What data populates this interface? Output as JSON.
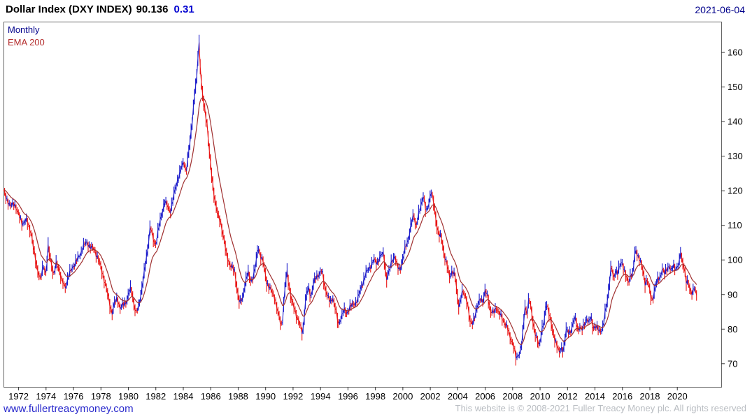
{
  "header": {
    "title": "Dollar Index (DXY INDEX)",
    "last_price": "90.136",
    "change": "0.31",
    "date": "2021-06-04"
  },
  "legend": {
    "series_label": "Monthly",
    "ema_label": "EMA 200"
  },
  "footer": {
    "link": "www.fullertreacymoney.com",
    "copyright": "This website is © 2008-2021 Fuller Treacy Money plc. All rights reserved"
  },
  "colors": {
    "up": "#1d1dcb",
    "down": "#e81414",
    "ema": "#a03030",
    "navy": "#00008b",
    "ema_label": "#b42e2e",
    "change": "#0000d0",
    "link": "#2929cc",
    "copyright": "#b9bdc2",
    "axis_text": "#000000",
    "tick": "#333333",
    "border": "#666666"
  },
  "chart_data": {
    "type": "line",
    "title": "Dollar Index (DXY INDEX)",
    "timeframe": "Monthly",
    "overlay": "EMA 200",
    "last_price": 90.136,
    "change": 0.31,
    "as_of_date": "2021-06-04",
    "grid": false,
    "legend_position": "top-left",
    "y_axis_side": "right",
    "xlim": [
      1970.9,
      2023.2
    ],
    "ylim": [
      63.3,
      168.9
    ],
    "x_ticks": [
      1972,
      1974,
      1976,
      1978,
      1980,
      1982,
      1984,
      1986,
      1988,
      1990,
      1992,
      1994,
      1996,
      1998,
      2000,
      2002,
      2004,
      2006,
      2008,
      2010,
      2012,
      2014,
      2016,
      2018,
      2020
    ],
    "y_ticks": [
      70,
      80,
      90,
      100,
      110,
      120,
      130,
      140,
      150,
      160
    ],
    "render_alpha": 0.14,
    "series": [
      {
        "name": "DXY Monthly",
        "style": "ohlc-bars",
        "anchors": [
          [
            1970.9,
            120
          ],
          [
            1971.1,
            118
          ],
          [
            1971.4,
            115.5
          ],
          [
            1971.7,
            116.5
          ],
          [
            1972.0,
            113
          ],
          [
            1972.3,
            110.5
          ],
          [
            1972.6,
            111.5
          ],
          [
            1972.9,
            108
          ],
          [
            1973.1,
            103
          ],
          [
            1973.4,
            97
          ],
          [
            1973.6,
            94
          ],
          [
            1973.8,
            98.5
          ],
          [
            1974.0,
            96
          ],
          [
            1974.15,
            103.5
          ],
          [
            1974.35,
            100
          ],
          [
            1974.55,
            95.5
          ],
          [
            1974.75,
            99
          ],
          [
            1974.95,
            97.5
          ],
          [
            1975.15,
            94
          ],
          [
            1975.4,
            92
          ],
          [
            1975.65,
            95.5
          ],
          [
            1975.9,
            97.5
          ],
          [
            1976.15,
            99.5
          ],
          [
            1976.45,
            101
          ],
          [
            1976.7,
            104
          ],
          [
            1976.95,
            105
          ],
          [
            1977.2,
            104
          ],
          [
            1977.5,
            103
          ],
          [
            1977.8,
            100.5
          ],
          [
            1978.05,
            97
          ],
          [
            1978.3,
            93.5
          ],
          [
            1978.55,
            89
          ],
          [
            1978.8,
            84.5
          ],
          [
            1979.0,
            87.5
          ],
          [
            1979.2,
            89
          ],
          [
            1979.4,
            86
          ],
          [
            1979.6,
            87
          ],
          [
            1979.85,
            88
          ],
          [
            1980.05,
            90.5
          ],
          [
            1980.2,
            92
          ],
          [
            1980.4,
            87.5
          ],
          [
            1980.55,
            84.5
          ],
          [
            1980.75,
            86.5
          ],
          [
            1980.95,
            91
          ],
          [
            1981.15,
            96
          ],
          [
            1981.4,
            103
          ],
          [
            1981.6,
            110
          ],
          [
            1981.8,
            106
          ],
          [
            1982.0,
            104.5
          ],
          [
            1982.2,
            109
          ],
          [
            1982.45,
            113.5
          ],
          [
            1982.65,
            117
          ],
          [
            1982.85,
            115.5
          ],
          [
            1983.05,
            114
          ],
          [
            1983.25,
            117.5
          ],
          [
            1983.45,
            121
          ],
          [
            1983.65,
            124
          ],
          [
            1983.85,
            126.5
          ],
          [
            1984.05,
            128.5
          ],
          [
            1984.2,
            125.5
          ],
          [
            1984.4,
            131
          ],
          [
            1984.6,
            138
          ],
          [
            1984.8,
            147
          ],
          [
            1985.0,
            153
          ],
          [
            1985.13,
            164
          ],
          [
            1985.3,
            152
          ],
          [
            1985.45,
            146
          ],
          [
            1985.6,
            142.5
          ],
          [
            1985.75,
            139
          ],
          [
            1985.95,
            129
          ],
          [
            1986.15,
            121.5
          ],
          [
            1986.35,
            116.5
          ],
          [
            1986.55,
            112.5
          ],
          [
            1986.75,
            110.5
          ],
          [
            1986.95,
            106.5
          ],
          [
            1987.15,
            101.5
          ],
          [
            1987.35,
            99
          ],
          [
            1987.55,
            98
          ],
          [
            1987.75,
            96.5
          ],
          [
            1987.95,
            91
          ],
          [
            1988.1,
            87.5
          ],
          [
            1988.3,
            88.5
          ],
          [
            1988.5,
            93
          ],
          [
            1988.7,
            96.5
          ],
          [
            1988.9,
            94
          ],
          [
            1989.1,
            95
          ],
          [
            1989.3,
            99
          ],
          [
            1989.45,
            104
          ],
          [
            1989.65,
            101
          ],
          [
            1989.85,
            99
          ],
          [
            1990.05,
            94
          ],
          [
            1990.25,
            92
          ],
          [
            1990.45,
            91
          ],
          [
            1990.65,
            89.5
          ],
          [
            1990.85,
            85.5
          ],
          [
            1991.05,
            82.5
          ],
          [
            1991.2,
            81
          ],
          [
            1991.4,
            91
          ],
          [
            1991.55,
            97
          ],
          [
            1991.7,
            93
          ],
          [
            1991.9,
            88
          ],
          [
            1992.1,
            86
          ],
          [
            1992.3,
            83.5
          ],
          [
            1992.55,
            80.5
          ],
          [
            1992.7,
            78.5
          ],
          [
            1992.9,
            88
          ],
          [
            1993.1,
            92
          ],
          [
            1993.3,
            89.5
          ],
          [
            1993.5,
            93.5
          ],
          [
            1993.7,
            95
          ],
          [
            1993.9,
            96
          ],
          [
            1994.1,
            97
          ],
          [
            1994.3,
            92.5
          ],
          [
            1994.5,
            90
          ],
          [
            1994.7,
            87.5
          ],
          [
            1994.9,
            89
          ],
          [
            1995.1,
            86
          ],
          [
            1995.3,
            81
          ],
          [
            1995.5,
            83.5
          ],
          [
            1995.7,
            85.5
          ],
          [
            1995.9,
            84.5
          ],
          [
            1996.15,
            86.5
          ],
          [
            1996.4,
            87
          ],
          [
            1996.7,
            88.5
          ],
          [
            1997.0,
            92.5
          ],
          [
            1997.3,
            96
          ],
          [
            1997.6,
            98
          ],
          [
            1997.9,
            100
          ],
          [
            1998.1,
            99
          ],
          [
            1998.35,
            101
          ],
          [
            1998.6,
            102
          ],
          [
            1998.8,
            94.5
          ],
          [
            1999.0,
            96.5
          ],
          [
            1999.2,
            100
          ],
          [
            1999.4,
            101
          ],
          [
            1999.6,
            98
          ],
          [
            1999.8,
            97.5
          ],
          [
            2000.0,
            100
          ],
          [
            2000.2,
            104
          ],
          [
            2000.4,
            106
          ],
          [
            2000.6,
            110
          ],
          [
            2000.8,
            113.5
          ],
          [
            2000.95,
            109.5
          ],
          [
            2001.1,
            112
          ],
          [
            2001.3,
            115.5
          ],
          [
            2001.5,
            119
          ],
          [
            2001.7,
            113.5
          ],
          [
            2001.9,
            116.5
          ],
          [
            2002.05,
            120
          ],
          [
            2002.2,
            117.5
          ],
          [
            2002.4,
            112
          ],
          [
            2002.6,
            107.5
          ],
          [
            2002.8,
            106.5
          ],
          [
            2003.0,
            102
          ],
          [
            2003.2,
            99
          ],
          [
            2003.4,
            95
          ],
          [
            2003.6,
            97
          ],
          [
            2003.8,
            95.5
          ],
          [
            2004.0,
            88.5
          ],
          [
            2004.1,
            86.5
          ],
          [
            2004.3,
            90.5
          ],
          [
            2004.5,
            90
          ],
          [
            2004.7,
            88
          ],
          [
            2004.9,
            82
          ],
          [
            2005.05,
            81.5
          ],
          [
            2005.25,
            84
          ],
          [
            2005.45,
            86.5
          ],
          [
            2005.65,
            89
          ],
          [
            2005.85,
            88
          ],
          [
            2006.0,
            91
          ],
          [
            2006.2,
            89.5
          ],
          [
            2006.4,
            85
          ],
          [
            2006.6,
            84.5
          ],
          [
            2006.8,
            86.5
          ],
          [
            2007.0,
            84.5
          ],
          [
            2007.2,
            83.5
          ],
          [
            2007.4,
            82
          ],
          [
            2007.6,
            80.5
          ],
          [
            2007.8,
            78
          ],
          [
            2008.0,
            76
          ],
          [
            2008.15,
            73.5
          ],
          [
            2008.25,
            71.5
          ],
          [
            2008.4,
            72.5
          ],
          [
            2008.55,
            73.5
          ],
          [
            2008.7,
            76.5
          ],
          [
            2008.9,
            86.5
          ],
          [
            2009.05,
            84.5
          ],
          [
            2009.2,
            89
          ],
          [
            2009.4,
            84.5
          ],
          [
            2009.6,
            79.5
          ],
          [
            2009.8,
            76.5
          ],
          [
            2009.95,
            75
          ],
          [
            2010.1,
            79.5
          ],
          [
            2010.3,
            82
          ],
          [
            2010.45,
            87.5
          ],
          [
            2010.6,
            86
          ],
          [
            2010.75,
            83
          ],
          [
            2010.9,
            79.5
          ],
          [
            2011.05,
            77.5
          ],
          [
            2011.2,
            76
          ],
          [
            2011.4,
            73
          ],
          [
            2011.55,
            74.5
          ],
          [
            2011.7,
            74
          ],
          [
            2011.9,
            79.5
          ],
          [
            2012.1,
            79
          ],
          [
            2012.3,
            80
          ],
          [
            2012.45,
            82.5
          ],
          [
            2012.6,
            83
          ],
          [
            2012.75,
            80
          ],
          [
            2012.9,
            80.5
          ],
          [
            2013.05,
            79.5
          ],
          [
            2013.2,
            81.5
          ],
          [
            2013.4,
            83
          ],
          [
            2013.55,
            81.5
          ],
          [
            2013.7,
            84
          ],
          [
            2013.85,
            80.5
          ],
          [
            2014.05,
            80.5
          ],
          [
            2014.25,
            80
          ],
          [
            2014.45,
            79.5
          ],
          [
            2014.6,
            80.5
          ],
          [
            2014.75,
            85
          ],
          [
            2014.9,
            88.5
          ],
          [
            2015.05,
            93
          ],
          [
            2015.2,
            98.5
          ],
          [
            2015.35,
            94.5
          ],
          [
            2015.5,
            97
          ],
          [
            2015.65,
            96
          ],
          [
            2015.8,
            98
          ],
          [
            2015.95,
            100
          ],
          [
            2016.1,
            97.5
          ],
          [
            2016.3,
            94.5
          ],
          [
            2016.45,
            93.5
          ],
          [
            2016.6,
            96
          ],
          [
            2016.75,
            95.5
          ],
          [
            2016.9,
            101.5
          ],
          [
            2017.0,
            103
          ],
          [
            2017.15,
            101
          ],
          [
            2017.3,
            99.5
          ],
          [
            2017.5,
            97
          ],
          [
            2017.65,
            93.5
          ],
          [
            2017.8,
            94
          ],
          [
            2017.95,
            92
          ],
          [
            2018.1,
            89
          ],
          [
            2018.2,
            88.5
          ],
          [
            2018.4,
            92
          ],
          [
            2018.6,
            95
          ],
          [
            2018.75,
            95
          ],
          [
            2018.9,
            97
          ],
          [
            2019.05,
            96
          ],
          [
            2019.2,
            97.5
          ],
          [
            2019.4,
            98
          ],
          [
            2019.55,
            96.5
          ],
          [
            2019.7,
            99
          ],
          [
            2019.85,
            97.5
          ],
          [
            2020.0,
            97.5
          ],
          [
            2020.15,
            99.5
          ],
          [
            2020.22,
            103
          ],
          [
            2020.35,
            100
          ],
          [
            2020.5,
            97.5
          ],
          [
            2020.65,
            93.5
          ],
          [
            2020.8,
            94
          ],
          [
            2020.95,
            91
          ],
          [
            2021.1,
            89.8
          ],
          [
            2021.25,
            92.3
          ],
          [
            2021.4,
            90.1
          ]
        ]
      },
      {
        "name": "EMA 200",
        "style": "line",
        "derived_from": "DXY Monthly",
        "method": "ema",
        "periods": 200
      }
    ]
  }
}
